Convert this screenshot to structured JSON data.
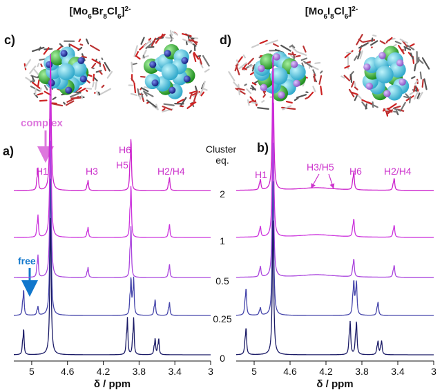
{
  "formulas": {
    "left": {
      "p1": "[Mo",
      "s1": "6",
      "p2": "Br",
      "s2": "8",
      "p3": "Cl",
      "s3": "6",
      "p4": "]",
      "sup": "2-"
    },
    "right": {
      "p1": "[Mo",
      "s1": "6",
      "p2": "I",
      "s2": "8",
      "p3": "Cl",
      "s3": "6",
      "p4": "]",
      "sup": "2-"
    }
  },
  "panel_labels": {
    "a": "a)",
    "b": "b)",
    "c": "c)",
    "d": "d)"
  },
  "annotations": {
    "complex": "complex",
    "free": "free"
  },
  "peaks_a": {
    "h1": "H1",
    "h3": "H3",
    "h6": "H6",
    "h5": "H5",
    "h2h4": "H2/H4"
  },
  "peaks_b": {
    "h1": "H1",
    "h3h5": "H3/H5",
    "h6": "H6",
    "h2h4": "H2/H4"
  },
  "cluster_header": {
    "line1": "Cluster",
    "line2": "eq."
  },
  "cluster_eq": [
    "2",
    "1",
    "0.5",
    "0.25",
    "0"
  ],
  "axis": {
    "ticks": [
      "5",
      "4.6",
      "4.2",
      "3.8",
      "3.4",
      "3"
    ],
    "xlabel": "δ / ppm"
  },
  "colors": {
    "traces": [
      "#cc22cc",
      "#cc33dd",
      "#aa44dd",
      "#4444aa",
      "#1a1a66"
    ],
    "label_magenta": "#cc33cc",
    "arrow_complex": "#dd77dd",
    "arrow_free": "#1177cc",
    "atom_cyan": "#55ccdd",
    "atom_green": "#33bb33",
    "atom_blue": "#2233aa",
    "atom_purple": "#9966cc"
  },
  "chart_data": [
    {
      "type": "line",
      "panel": "a",
      "xlabel": "δ / ppm",
      "xlim": [
        5.2,
        3.0
      ],
      "x_reversed": true,
      "series": [
        {
          "name": "2",
          "peaks_ppm": [
            4.93,
            4.79,
            4.37,
            3.89,
            3.46
          ]
        },
        {
          "name": "1",
          "peaks_ppm": [
            4.93,
            4.79,
            4.37,
            3.89,
            3.46
          ]
        },
        {
          "name": "0.5",
          "peaks_ppm": [
            4.93,
            4.79,
            4.37,
            3.89,
            3.46
          ]
        },
        {
          "name": "0.25",
          "peaks_ppm": [
            5.09,
            4.93,
            4.79,
            3.89,
            3.86,
            3.62,
            3.46
          ]
        },
        {
          "name": "0",
          "peaks_ppm": [
            5.09,
            4.79,
            3.93,
            3.86,
            3.62,
            3.58
          ]
        }
      ]
    },
    {
      "type": "line",
      "panel": "b",
      "xlabel": "δ / ppm",
      "xlim": [
        5.2,
        3.0
      ],
      "x_reversed": true,
      "series": [
        {
          "name": "2",
          "peaks_ppm": [
            4.93,
            4.79,
            3.89,
            3.44
          ]
        },
        {
          "name": "1",
          "peaks_ppm": [
            4.93,
            4.79,
            3.89,
            3.44
          ]
        },
        {
          "name": "0.5",
          "peaks_ppm": [
            4.93,
            4.79,
            3.89,
            3.44
          ]
        },
        {
          "name": "0.25",
          "peaks_ppm": [
            5.09,
            4.93,
            4.79,
            3.89,
            3.86,
            3.62
          ]
        },
        {
          "name": "0",
          "peaks_ppm": [
            5.09,
            4.79,
            3.93,
            3.86,
            3.62,
            3.58
          ]
        }
      ]
    }
  ]
}
